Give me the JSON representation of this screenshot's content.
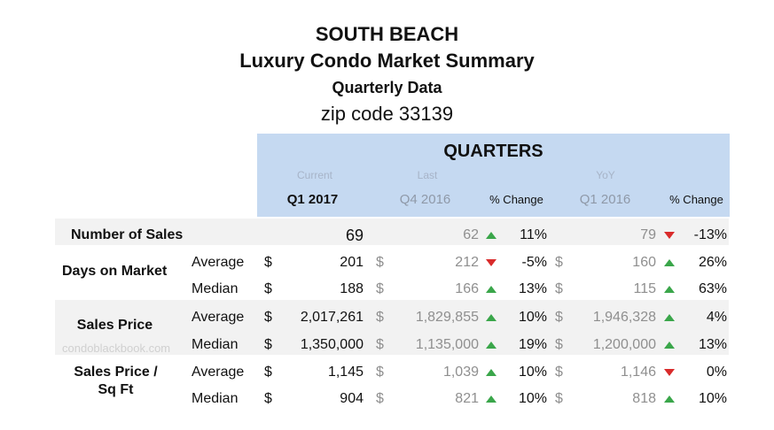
{
  "titles": {
    "line1": "SOUTH BEACH",
    "line2": "Luxury Condo Market Summary",
    "line3": "Quarterly Data",
    "line4": "zip code 33139"
  },
  "header": {
    "quarters": "QUARTERS",
    "current_label": "Current",
    "last_label": "Last",
    "yoy_label": "YoY",
    "current_q": "Q1 2017",
    "last_q": "Q4 2016",
    "pct_change_1": "% Change",
    "yoy_q": "Q1 2016",
    "pct_change_2": "% Change"
  },
  "currency": "$",
  "watermark": "condoblackbook.com",
  "rows": [
    {
      "label": "Number of Sales",
      "metric": "",
      "current": "69",
      "last": "62",
      "last_dir": "up",
      "last_pct": "11%",
      "yoy": "79",
      "yoy_dir": "down",
      "yoy_pct": "-13%"
    },
    {
      "label": "Days on Market",
      "metric": "Average",
      "current": "201",
      "last": "212",
      "last_dir": "down",
      "last_pct": "-5%",
      "yoy": "160",
      "yoy_dir": "up",
      "yoy_pct": "26%"
    },
    {
      "label": "",
      "metric": "Median",
      "current": "188",
      "last": "166",
      "last_dir": "up",
      "last_pct": "13%",
      "yoy": "115",
      "yoy_dir": "up",
      "yoy_pct": "63%"
    },
    {
      "label": "Sales Price",
      "metric": "Average",
      "current": "2,017,261",
      "last": "1,829,855",
      "last_dir": "up",
      "last_pct": "10%",
      "yoy": "1,946,328",
      "yoy_dir": "up",
      "yoy_pct": "4%"
    },
    {
      "label": "",
      "metric": "Median",
      "current": "1,350,000",
      "last": "1,135,000",
      "last_dir": "up",
      "last_pct": "19%",
      "yoy": "1,200,000",
      "yoy_dir": "up",
      "yoy_pct": "13%"
    },
    {
      "label": "Sales Price / Sq Ft",
      "metric": "Average",
      "current": "1,145",
      "last": "1,039",
      "last_dir": "up",
      "last_pct": "10%",
      "yoy": "1,146",
      "yoy_dir": "down",
      "yoy_pct": "0%"
    },
    {
      "label": "",
      "metric": "Median",
      "current": "904",
      "last": "821",
      "last_dir": "up",
      "last_pct": "10%",
      "yoy": "818",
      "yoy_dir": "up",
      "yoy_pct": "10%"
    }
  ],
  "colors": {
    "up": "#3aa64a",
    "down": "#d92b2b",
    "header": "#c5d9f1",
    "band": "#f2f2f2"
  }
}
